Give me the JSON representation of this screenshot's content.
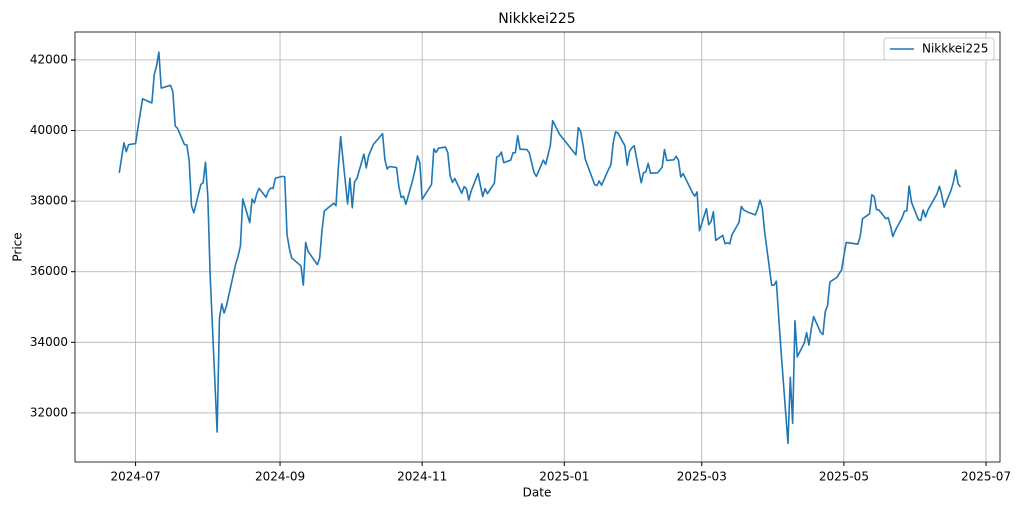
{
  "chart_data": {
    "type": "line",
    "title": "Nikkkei225",
    "x_label": "Date",
    "y_label": "Price",
    "x": [
      "2024-06-24",
      "2024-06-26",
      "2024-06-27",
      "2024-06-28",
      "2024-07-01",
      "2024-07-02",
      "2024-07-04",
      "2024-07-08",
      "2024-07-09",
      "2024-07-10",
      "2024-07-11",
      "2024-07-12",
      "2024-07-16",
      "2024-07-17",
      "2024-07-18",
      "2024-07-19",
      "2024-07-22",
      "2024-07-23",
      "2024-07-24",
      "2024-07-25",
      "2024-07-26",
      "2024-07-29",
      "2024-07-30",
      "2024-07-31",
      "2024-08-01",
      "2024-08-02",
      "2024-08-05",
      "2024-08-06",
      "2024-08-07",
      "2024-08-08",
      "2024-08-09",
      "2024-08-13",
      "2024-08-14",
      "2024-08-15",
      "2024-08-16",
      "2024-08-19",
      "2024-08-20",
      "2024-08-21",
      "2024-08-22",
      "2024-08-23",
      "2024-08-26",
      "2024-08-27",
      "2024-08-28",
      "2024-08-29",
      "2024-08-30",
      "2024-09-02",
      "2024-09-03",
      "2024-09-04",
      "2024-09-05",
      "2024-09-06",
      "2024-09-09",
      "2024-09-10",
      "2024-09-11",
      "2024-09-12",
      "2024-09-13",
      "2024-09-17",
      "2024-09-18",
      "2024-09-19",
      "2024-09-20",
      "2024-09-24",
      "2024-09-25",
      "2024-09-26",
      "2024-09-27",
      "2024-09-30",
      "2024-10-01",
      "2024-10-02",
      "2024-10-03",
      "2024-10-04",
      "2024-10-07",
      "2024-10-08",
      "2024-10-09",
      "2024-10-11",
      "2024-10-15",
      "2024-10-16",
      "2024-10-17",
      "2024-10-18",
      "2024-10-21",
      "2024-10-22",
      "2024-10-23",
      "2024-10-24",
      "2024-10-25",
      "2024-10-28",
      "2024-10-29",
      "2024-10-30",
      "2024-10-31",
      "2024-11-01",
      "2024-11-05",
      "2024-11-06",
      "2024-11-07",
      "2024-11-08",
      "2024-11-11",
      "2024-11-12",
      "2024-11-13",
      "2024-11-14",
      "2024-11-15",
      "2024-11-18",
      "2024-11-19",
      "2024-11-20",
      "2024-11-21",
      "2024-11-22",
      "2024-11-25",
      "2024-11-26",
      "2024-11-27",
      "2024-11-28",
      "2024-11-29",
      "2024-12-02",
      "2024-12-03",
      "2024-12-04",
      "2024-12-05",
      "2024-12-06",
      "2024-12-09",
      "2024-12-10",
      "2024-12-11",
      "2024-12-12",
      "2024-12-13",
      "2024-12-16",
      "2024-12-17",
      "2024-12-18",
      "2024-12-19",
      "2024-12-20",
      "2024-12-23",
      "2024-12-24",
      "2024-12-26",
      "2024-12-27",
      "2024-12-30",
      "2025-01-06",
      "2025-01-07",
      "2025-01-08",
      "2025-01-09",
      "2025-01-10",
      "2025-01-14",
      "2025-01-15",
      "2025-01-16",
      "2025-01-17",
      "2025-01-20",
      "2025-01-21",
      "2025-01-22",
      "2025-01-23",
      "2025-01-24",
      "2025-01-27",
      "2025-01-28",
      "2025-01-29",
      "2025-01-30",
      "2025-01-31",
      "2025-02-03",
      "2025-02-04",
      "2025-02-05",
      "2025-02-06",
      "2025-02-07",
      "2025-02-10",
      "2025-02-12",
      "2025-02-13",
      "2025-02-14",
      "2025-02-17",
      "2025-02-18",
      "2025-02-19",
      "2025-02-20",
      "2025-02-21",
      "2025-02-25",
      "2025-02-26",
      "2025-02-27",
      "2025-02-28",
      "2025-03-03",
      "2025-03-04",
      "2025-03-05",
      "2025-03-06",
      "2025-03-07",
      "2025-03-10",
      "2025-03-11",
      "2025-03-12",
      "2025-03-13",
      "2025-03-14",
      "2025-03-17",
      "2025-03-18",
      "2025-03-19",
      "2025-03-21",
      "2025-03-24",
      "2025-03-25",
      "2025-03-26",
      "2025-03-27",
      "2025-03-28",
      "2025-03-31",
      "2025-04-01",
      "2025-04-02",
      "2025-04-03",
      "2025-04-04",
      "2025-04-07",
      "2025-04-08",
      "2025-04-09",
      "2025-04-10",
      "2025-04-11",
      "2025-04-14",
      "2025-04-15",
      "2025-04-16",
      "2025-04-17",
      "2025-04-18",
      "2025-04-21",
      "2025-04-22",
      "2025-04-23",
      "2025-04-24",
      "2025-04-25",
      "2025-04-28",
      "2025-04-30",
      "2025-05-01",
      "2025-05-02",
      "2025-05-07",
      "2025-05-08",
      "2025-05-09",
      "2025-05-12",
      "2025-05-13",
      "2025-05-14",
      "2025-05-15",
      "2025-05-16",
      "2025-05-19",
      "2025-05-20",
      "2025-05-21",
      "2025-05-22",
      "2025-05-23",
      "2025-05-26",
      "2025-05-27",
      "2025-05-28",
      "2025-05-29",
      "2025-05-30",
      "2025-06-02",
      "2025-06-03",
      "2025-06-04",
      "2025-06-05",
      "2025-06-06",
      "2025-06-09",
      "2025-06-10",
      "2025-06-11",
      "2025-06-12",
      "2025-06-13",
      "2025-06-16",
      "2025-06-17",
      "2025-06-18",
      "2025-06-19",
      "2025-06-20"
    ],
    "series": [
      {
        "name": "Nikkkei225",
        "color": "#1f77b4",
        "values": [
          38800,
          39650,
          39400,
          39600,
          39630,
          40070,
          40900,
          40780,
          41580,
          41830,
          42220,
          41200,
          41280,
          41100,
          40130,
          40060,
          39600,
          39590,
          39150,
          37870,
          37670,
          38470,
          38520,
          39100,
          38130,
          35910,
          31460,
          34680,
          35090,
          34830,
          35030,
          36230,
          36440,
          36730,
          38060,
          37390,
          38060,
          37950,
          38210,
          38360,
          38110,
          38290,
          38370,
          38360,
          38650,
          38700,
          38690,
          37050,
          36660,
          36390,
          36220,
          36160,
          35620,
          36830,
          36580,
          36200,
          36380,
          37160,
          37720,
          37940,
          37870,
          38920,
          39830,
          37920,
          38650,
          37810,
          38550,
          38640,
          39330,
          38940,
          39280,
          39600,
          39910,
          39180,
          38910,
          38980,
          38950,
          38410,
          38100,
          38140,
          37910,
          38610,
          38900,
          39280,
          39080,
          38050,
          38470,
          39480,
          39380,
          39500,
          39530,
          39370,
          38720,
          38530,
          38640,
          38220,
          38410,
          38350,
          38030,
          38280,
          38780,
          38440,
          38130,
          38350,
          38210,
          38510,
          39250,
          39280,
          39390,
          39090,
          39160,
          39370,
          39370,
          39850,
          39470,
          39460,
          39360,
          39080,
          38810,
          38700,
          39160,
          39040,
          39570,
          40280,
          39890,
          39310,
          40080,
          39980,
          39610,
          39190,
          38470,
          38440,
          38570,
          38450,
          38900,
          39030,
          39650,
          39960,
          39930,
          39570,
          39020,
          39410,
          39510,
          39570,
          38520,
          38800,
          38830,
          39070,
          38790,
          38800,
          38960,
          39460,
          39150,
          39170,
          39270,
          39160,
          38680,
          38780,
          38240,
          38140,
          38260,
          37160,
          37790,
          37330,
          37420,
          37700,
          36890,
          37030,
          36790,
          36820,
          36790,
          37050,
          37400,
          37850,
          37750,
          37680,
          37610,
          37780,
          38030,
          37800,
          37120,
          35620,
          35620,
          35730,
          34740,
          33780,
          31140,
          33010,
          31710,
          34610,
          33590,
          33980,
          34270,
          33920,
          34380,
          34730,
          34280,
          34220,
          34870,
          35040,
          35710,
          35840,
          36050,
          36450,
          36830,
          36780,
          37000,
          37500,
          37640,
          38180,
          38130,
          37760,
          37750,
          37500,
          37530,
          37300,
          37000,
          37160,
          37530,
          37720,
          37720,
          38430,
          37970,
          37470,
          37450,
          37750,
          37550,
          37740,
          38090,
          38210,
          38420,
          38170,
          37830,
          38310,
          38540,
          38880,
          38490,
          38400
        ]
      }
    ],
    "xlim": [
      "2024-06-05",
      "2025-07-07"
    ],
    "xticks": [
      {
        "value": "2024-07-01",
        "label": "2024-07"
      },
      {
        "value": "2024-09-01",
        "label": "2024-09"
      },
      {
        "value": "2024-11-01",
        "label": "2024-11"
      },
      {
        "value": "2025-01-01",
        "label": "2025-01"
      },
      {
        "value": "2025-03-01",
        "label": "2025-03"
      },
      {
        "value": "2025-05-01",
        "label": "2025-05"
      },
      {
        "value": "2025-07-01",
        "label": "2025-07"
      }
    ],
    "ylim": [
      30610,
      42790
    ],
    "yticks": [
      32000,
      34000,
      36000,
      38000,
      40000,
      42000
    ],
    "grid": true,
    "legend": "upper-right"
  }
}
